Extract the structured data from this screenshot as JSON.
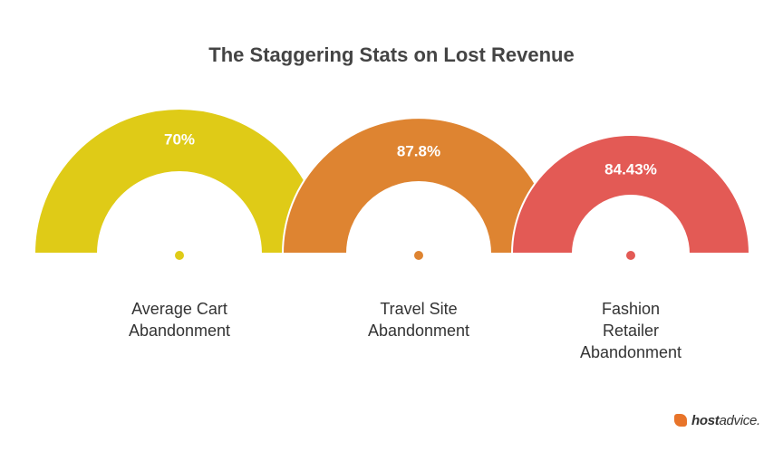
{
  "chart_data": {
    "type": "semicircle",
    "title": "The Staggering Stats on Lost Revenue",
    "categories": [
      "Average Cart Abandonment",
      "Travel Site Abandonment",
      "Fashion Retailer Abandonment"
    ],
    "values": [
      70,
      87.8,
      84.43
    ],
    "value_labels": [
      "70%",
      "87.8%",
      "84.43%"
    ],
    "colors": [
      "#dfcb17",
      "#de8431",
      "#e35a55"
    ]
  },
  "brand": {
    "bold": "host",
    "rest": "advice."
  }
}
